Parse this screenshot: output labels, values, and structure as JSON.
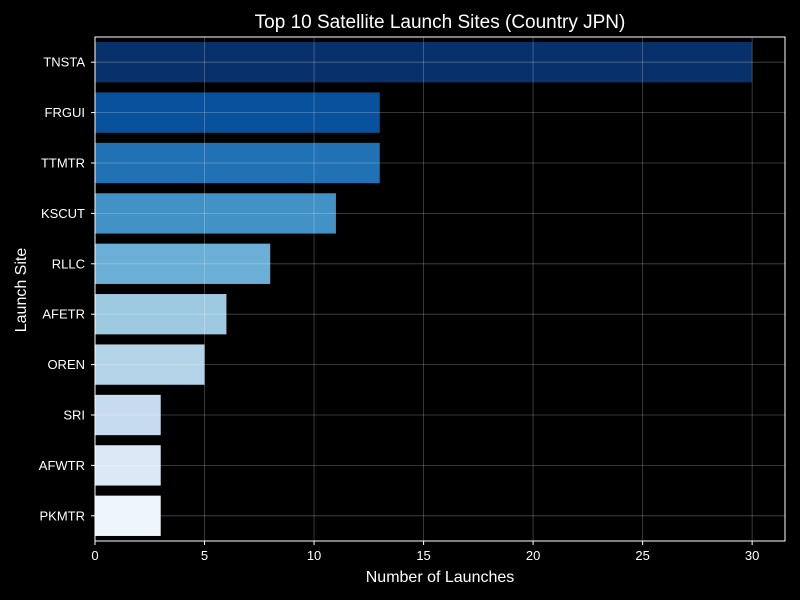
{
  "chart_data": {
    "type": "bar",
    "orientation": "horizontal",
    "title": "Top 10 Satellite Launch Sites (Country JPN)",
    "xlabel": "Number of Launches",
    "ylabel": "Launch Site",
    "categories": [
      "TNSTA",
      "FRGUI",
      "TTMTR",
      "KSCUT",
      "RLLC",
      "AFETR",
      "OREN",
      "SRI",
      "AFWTR",
      "PKMTR"
    ],
    "values": [
      30,
      13,
      13,
      11,
      8,
      6,
      5,
      3,
      3,
      3
    ],
    "xlim": [
      0,
      31.5
    ],
    "xticks": [
      0,
      5,
      10,
      15,
      20,
      25,
      30
    ],
    "grid": true,
    "legend": "none",
    "colors": [
      "#08306b",
      "#08519c",
      "#2171b5",
      "#4292c6",
      "#6baed6",
      "#9ecae1",
      "#b3d3e8",
      "#c6dbef",
      "#dbe9f6",
      "#eff5fc"
    ],
    "background": "#000000"
  }
}
